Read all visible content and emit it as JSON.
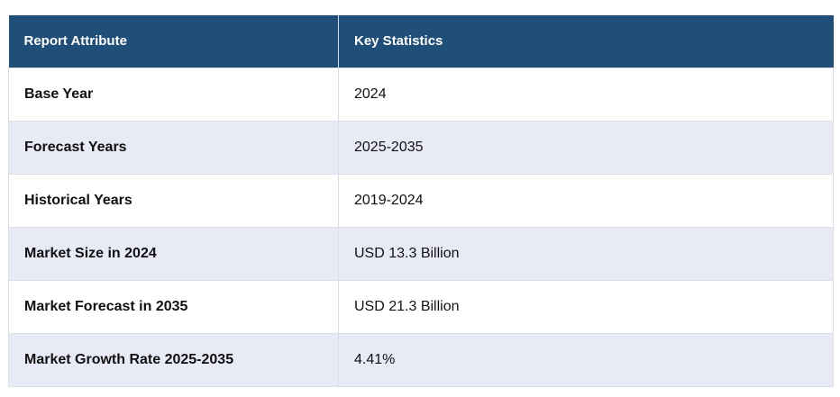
{
  "table": {
    "headers": [
      "Report Attribute",
      "Key Statistics"
    ],
    "rows": [
      {
        "attribute": "Base Year",
        "value": "2024"
      },
      {
        "attribute": "Forecast Years",
        "value": "2025-2035"
      },
      {
        "attribute": "Historical Years",
        "value": "2019-2024"
      },
      {
        "attribute": "Market Size in 2024",
        "value": "USD 13.3 Billion"
      },
      {
        "attribute": "Market Forecast in 2035",
        "value": "USD 21.3 Billion"
      },
      {
        "attribute": "Market Growth Rate 2025-2035",
        "value": "4.41%"
      }
    ]
  },
  "colors": {
    "header_bg": "#1f4e79",
    "header_text": "#ffffff",
    "row_alt_bg": "#e8eaf6",
    "row_bg": "#ffffff"
  }
}
